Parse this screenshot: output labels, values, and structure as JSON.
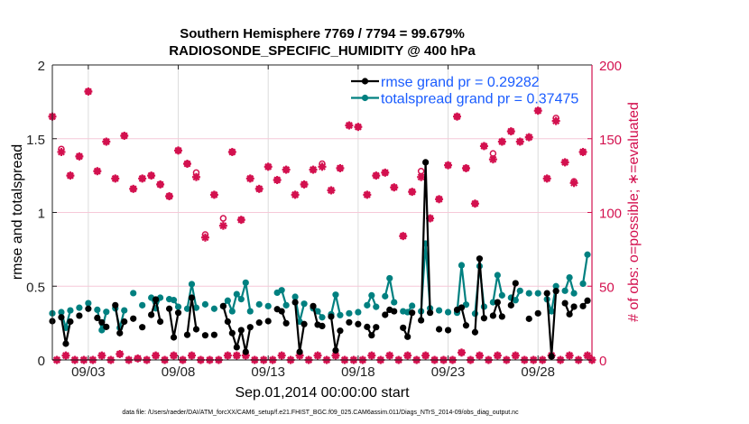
{
  "chart_data": {
    "type": "line",
    "title": [
      "Southern Hemisphere 7769 / 7794 = 99.679%",
      "RADIOSONDE_SPECIFIC_HUMIDITY @ 400 hPa"
    ],
    "xlabel": "Sep.01,2014 00:00:00 start",
    "ylabel_left": "rmse and totalspread",
    "ylabel_right": "# of obs: o=possible; ∗=evaluated",
    "footnote": "data file: /Users/raeder/DAI/ATM_forcXX/CAM6_setup/f.e21.FHIST_BGC.f09_025.CAM6assim.011/Diags_NTrS_2014-09/obs_diag_output.nc",
    "xlim": [
      "09/01 00:00",
      "10/01 00:00"
    ],
    "x_step_hours": 6,
    "x_ticks": [
      "09/03",
      "09/08",
      "09/13",
      "09/18",
      "09/23",
      "09/28"
    ],
    "x_tick_days": [
      2,
      7,
      12,
      17,
      22,
      27
    ],
    "ylim_left": [
      0,
      2
    ],
    "y_ticks_left": [
      "0",
      "0.5",
      "1",
      "1.5",
      "2"
    ],
    "ylim_right": [
      0,
      200
    ],
    "y_ticks_right": [
      "0",
      "50",
      "100",
      "150",
      "200"
    ],
    "grid": true,
    "legend_position": "top-right",
    "colors": {
      "rmse": "#000000",
      "totalspread": "#008080",
      "obs": "#d3114f",
      "legend_text": "#1a5cff"
    },
    "series": [
      {
        "name": "rmse grand pr = 0.29282",
        "axis": "left",
        "values": [
          0.263,
          null,
          0.289,
          0.11,
          0.26,
          null,
          0.3,
          null,
          0.347,
          null,
          0.285,
          0.255,
          0.224,
          null,
          0.371,
          0.182,
          0.26,
          null,
          0.28,
          null,
          0.222,
          null,
          0.306,
          0.41,
          0.26,
          null,
          0.347,
          0.153,
          0.32,
          null,
          0.17,
          0.422,
          0.208,
          null,
          0.167,
          null,
          0.17,
          null,
          0.365,
          0.26,
          0.182,
          0.086,
          0.202,
          0.055,
          0.222,
          null,
          0.253,
          null,
          0.263,
          null,
          0.344,
          0.33,
          0.249,
          null,
          0.391,
          0.055,
          0.243,
          null,
          0.365,
          0.239,
          0.23,
          null,
          0.294,
          0.065,
          0.198,
          null,
          0.255,
          null,
          0.243,
          null,
          0.224,
          0.167,
          0.222,
          null,
          0.306,
          0.34,
          0.33,
          null,
          0.218,
          0.157,
          0.32,
          null,
          0.269,
          1.34,
          0.32,
          null,
          0.208,
          null,
          0.202,
          null,
          0.34,
          0.355,
          0.234,
          null,
          0.188,
          0.687,
          0.283,
          null,
          0.3,
          0.391,
          0.294,
          null,
          0.371,
          0.52,
          null,
          null,
          0.279,
          null,
          0.316,
          null,
          0.452,
          0.024,
          0.467,
          null,
          0.385,
          0.31,
          0.361,
          null,
          0.365,
          0.402,
          null
        ]
      },
      {
        "name": "totalspread grand pr = 0.37475",
        "axis": "left",
        "values": [
          0.316,
          null,
          0.324,
          0.218,
          0.336,
          null,
          0.354,
          null,
          0.385,
          null,
          0.34,
          0.202,
          0.326,
          null,
          0.35,
          0.218,
          0.336,
          null,
          0.453,
          null,
          0.371,
          null,
          0.422,
          0.35,
          0.422,
          null,
          0.412,
          0.406,
          0.36,
          null,
          0.347,
          0.514,
          0.354,
          null,
          0.377,
          null,
          0.347,
          null,
          0.365,
          0.402,
          0.33,
          0.446,
          0.412,
          0.524,
          0.33,
          null,
          0.377,
          null,
          0.365,
          null,
          0.456,
          0.473,
          0.371,
          null,
          0.428,
          0.26,
          0.381,
          null,
          0.35,
          0.33,
          0.289,
          null,
          0.31,
          0.442,
          0.304,
          null,
          0.316,
          null,
          0.324,
          null,
          0.371,
          0.438,
          0.36,
          null,
          0.432,
          0.554,
          0.391,
          null,
          0.33,
          0.324,
          0.367,
          null,
          0.33,
          0.789,
          0.35,
          null,
          0.336,
          null,
          0.324,
          null,
          0.32,
          0.642,
          0.375,
          null,
          0.314,
          0.636,
          0.361,
          null,
          0.391,
          0.575,
          0.438,
          null,
          0.422,
          0.405,
          0.469,
          null,
          0.452,
          null,
          0.452,
          null,
          0.411,
          0.33,
          0.5,
          null,
          0.469,
          0.559,
          0.452,
          null,
          0.517,
          0.714,
          null
        ]
      },
      {
        "name": "possible",
        "axis": "right",
        "marker": "o",
        "values": [
          165,
          0,
          143,
          3,
          125,
          0,
          138,
          0,
          182,
          0,
          128,
          3,
          148,
          0,
          123,
          4,
          152,
          0,
          116,
          1,
          123,
          0,
          125,
          3,
          119,
          0,
          111,
          3,
          142,
          0,
          133,
          3,
          127,
          0,
          85,
          0,
          112,
          0,
          96,
          3,
          141,
          3,
          95,
          3,
          123,
          0,
          116,
          0,
          131,
          0,
          122,
          3,
          129,
          0,
          112,
          3,
          119,
          0,
          129,
          3,
          133,
          0,
          115,
          3,
          130,
          0,
          159,
          0,
          158,
          0,
          112,
          3,
          125,
          0,
          127,
          3,
          117,
          0,
          84,
          3,
          114,
          0,
          128,
          3,
          96,
          0,
          109,
          0,
          132,
          0,
          165,
          5,
          130,
          0,
          106,
          3,
          145,
          0,
          140,
          3,
          148,
          0,
          155,
          3,
          148,
          0,
          151,
          0,
          169,
          0,
          123,
          3,
          164,
          0,
          134,
          3,
          121,
          0,
          141,
          3,
          0
        ]
      },
      {
        "name": "evaluated",
        "axis": "right",
        "marker": "*",
        "values": [
          165,
          0,
          141,
          3,
          125,
          0,
          138,
          0,
          182,
          0,
          128,
          3,
          148,
          0,
          123,
          4,
          152,
          0,
          116,
          1,
          123,
          0,
          125,
          3,
          119,
          0,
          111,
          3,
          142,
          0,
          133,
          3,
          124,
          0,
          83,
          0,
          112,
          0,
          91,
          3,
          141,
          3,
          95,
          3,
          123,
          0,
          116,
          0,
          131,
          0,
          122,
          3,
          129,
          0,
          112,
          3,
          119,
          0,
          129,
          3,
          131,
          0,
          115,
          3,
          130,
          0,
          159,
          0,
          158,
          0,
          112,
          3,
          125,
          0,
          127,
          3,
          117,
          0,
          84,
          3,
          114,
          0,
          124,
          3,
          96,
          0,
          109,
          0,
          132,
          0,
          165,
          5,
          130,
          0,
          106,
          3,
          145,
          0,
          136,
          3,
          148,
          0,
          155,
          3,
          148,
          0,
          151,
          0,
          169,
          0,
          123,
          3,
          162,
          0,
          134,
          3,
          120,
          0,
          141,
          3,
          0
        ]
      }
    ]
  }
}
